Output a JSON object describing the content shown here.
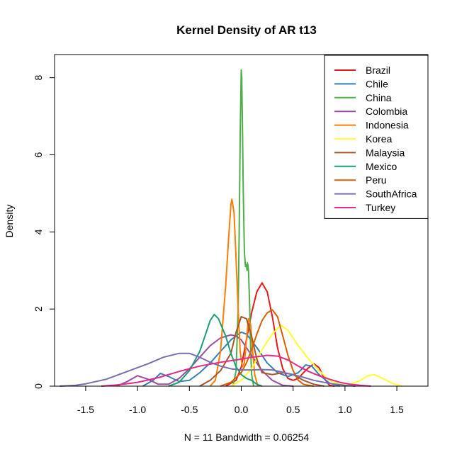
{
  "chart_data": {
    "type": "line",
    "title": "Kernel Density of AR t13",
    "xlabel": "N = 11   Bandwidth = 0.06254",
    "ylabel": "Density",
    "xlim": [
      -1.8,
      1.8
    ],
    "ylim": [
      0,
      8.6
    ],
    "x_ticks": [
      -1.5,
      -1.0,
      -0.5,
      0.0,
      0.5,
      1.0,
      1.5
    ],
    "x_tick_labels": [
      "-1.5",
      "-1.0",
      "-0.5",
      "0.0",
      "0.5",
      "1.0",
      "1.5"
    ],
    "y_ticks": [
      0,
      2,
      4,
      6,
      8
    ],
    "y_tick_labels": [
      "0",
      "2",
      "4",
      "6",
      "8"
    ],
    "legend_position": "top-right",
    "grid": false,
    "baseline_color": "#bebebe",
    "series": [
      {
        "name": "Brazil",
        "color": "#E41A1C",
        "points": [
          [
            -0.15,
            0
          ],
          [
            -0.05,
            0.15
          ],
          [
            0.0,
            0.5
          ],
          [
            0.05,
            1.2
          ],
          [
            0.1,
            1.9
          ],
          [
            0.15,
            2.45
          ],
          [
            0.2,
            2.68
          ],
          [
            0.25,
            2.45
          ],
          [
            0.3,
            1.8
          ],
          [
            0.35,
            1.0
          ],
          [
            0.4,
            0.45
          ],
          [
            0.45,
            0.2
          ],
          [
            0.5,
            0.15
          ],
          [
            0.55,
            0.2
          ],
          [
            0.6,
            0.35
          ],
          [
            0.65,
            0.48
          ],
          [
            0.7,
            0.58
          ],
          [
            0.75,
            0.48
          ],
          [
            0.8,
            0.2
          ],
          [
            0.85,
            0.02
          ],
          [
            0.9,
            0
          ]
        ]
      },
      {
        "name": "Chile",
        "color": "#377EB8",
        "points": [
          [
            -0.95,
            0
          ],
          [
            -0.85,
            0.15
          ],
          [
            -0.78,
            0.33
          ],
          [
            -0.7,
            0.25
          ],
          [
            -0.6,
            0.12
          ],
          [
            -0.5,
            0.15
          ],
          [
            -0.4,
            0.35
          ],
          [
            -0.3,
            0.6
          ],
          [
            -0.2,
            0.9
          ],
          [
            -0.1,
            1.2
          ],
          [
            0.0,
            1.4
          ],
          [
            0.05,
            1.35
          ],
          [
            0.15,
            1.0
          ],
          [
            0.25,
            0.6
          ],
          [
            0.35,
            0.35
          ],
          [
            0.45,
            0.25
          ],
          [
            0.55,
            0.35
          ],
          [
            0.62,
            0.55
          ],
          [
            0.68,
            0.52
          ],
          [
            0.75,
            0.3
          ],
          [
            0.85,
            0.08
          ],
          [
            0.95,
            0
          ]
        ]
      },
      {
        "name": "China",
        "color": "#4DAF4A",
        "points": [
          [
            -0.08,
            0
          ],
          [
            -0.05,
            0.4
          ],
          [
            -0.03,
            2.0
          ],
          [
            -0.02,
            4.0
          ],
          [
            -0.01,
            6.5
          ],
          [
            0.0,
            8.2
          ],
          [
            0.005,
            8.0
          ],
          [
            0.01,
            7.0
          ],
          [
            0.02,
            5.0
          ],
          [
            0.03,
            3.5
          ],
          [
            0.04,
            3.1
          ],
          [
            0.05,
            3.15
          ],
          [
            0.055,
            3.0
          ],
          [
            0.06,
            3.2
          ],
          [
            0.07,
            3.0
          ],
          [
            0.08,
            2.2
          ],
          [
            0.09,
            1.0
          ],
          [
            0.1,
            0.3
          ],
          [
            0.12,
            0
          ]
        ]
      },
      {
        "name": "Colombia",
        "color": "#984EA3",
        "points": [
          [
            -1.2,
            0
          ],
          [
            -1.1,
            0.12
          ],
          [
            -1.0,
            0.27
          ],
          [
            -0.9,
            0.18
          ],
          [
            -0.8,
            0.05
          ],
          [
            -0.7,
            0.05
          ],
          [
            -0.6,
            0.2
          ],
          [
            -0.5,
            0.45
          ],
          [
            -0.4,
            0.75
          ],
          [
            -0.3,
            1.05
          ],
          [
            -0.2,
            1.25
          ],
          [
            -0.1,
            1.33
          ],
          [
            -0.05,
            1.3
          ],
          [
            0.0,
            1.2
          ],
          [
            0.1,
            0.8
          ],
          [
            0.2,
            0.4
          ],
          [
            0.3,
            0.15
          ],
          [
            0.4,
            0.02
          ],
          [
            0.5,
            0
          ]
        ]
      },
      {
        "name": "Indonesia",
        "color": "#FF7F00",
        "points": [
          [
            -0.3,
            0
          ],
          [
            -0.25,
            0.15
          ],
          [
            -0.2,
            0.9
          ],
          [
            -0.15,
            2.6
          ],
          [
            -0.12,
            3.9
          ],
          [
            -0.1,
            4.7
          ],
          [
            -0.09,
            4.85
          ],
          [
            -0.07,
            4.5
          ],
          [
            -0.05,
            3.3
          ],
          [
            -0.03,
            2.0
          ],
          [
            -0.01,
            0.9
          ],
          [
            0.01,
            0.5
          ],
          [
            0.03,
            0.6
          ],
          [
            0.05,
            1.2
          ],
          [
            0.07,
            1.75
          ],
          [
            0.09,
            1.6
          ],
          [
            0.11,
            0.9
          ],
          [
            0.13,
            0.3
          ],
          [
            0.16,
            0
          ]
        ]
      },
      {
        "name": "Korea",
        "color": "#FFFF33",
        "points": [
          [
            -0.1,
            0
          ],
          [
            0.0,
            0.15
          ],
          [
            0.1,
            0.45
          ],
          [
            0.2,
            0.95
          ],
          [
            0.3,
            1.35
          ],
          [
            0.38,
            1.58
          ],
          [
            0.45,
            1.45
          ],
          [
            0.55,
            1.05
          ],
          [
            0.65,
            0.7
          ],
          [
            0.75,
            0.4
          ],
          [
            0.85,
            0.15
          ],
          [
            0.95,
            0.05
          ],
          [
            1.05,
            0.05
          ],
          [
            1.15,
            0.15
          ],
          [
            1.22,
            0.27
          ],
          [
            1.28,
            0.3
          ],
          [
            1.35,
            0.22
          ],
          [
            1.45,
            0.08
          ],
          [
            1.55,
            0
          ]
        ]
      },
      {
        "name": "Malaysia",
        "color": "#A65628",
        "points": [
          [
            -0.4,
            0
          ],
          [
            -0.3,
            0.15
          ],
          [
            -0.2,
            0.4
          ],
          [
            -0.1,
            0.85
          ],
          [
            -0.05,
            1.4
          ],
          [
            0.0,
            1.8
          ],
          [
            0.05,
            1.75
          ],
          [
            0.1,
            1.3
          ],
          [
            0.15,
            0.7
          ],
          [
            0.2,
            0.35
          ],
          [
            0.3,
            0.3
          ],
          [
            0.4,
            0.35
          ],
          [
            0.5,
            0.3
          ],
          [
            0.6,
            0.15
          ],
          [
            0.7,
            0.05
          ],
          [
            0.8,
            0
          ]
        ]
      },
      {
        "name": "Mexico",
        "color": "#1B9E77",
        "points": [
          [
            -0.7,
            0
          ],
          [
            -0.6,
            0.1
          ],
          [
            -0.5,
            0.4
          ],
          [
            -0.4,
            0.9
          ],
          [
            -0.35,
            1.3
          ],
          [
            -0.3,
            1.7
          ],
          [
            -0.26,
            1.86
          ],
          [
            -0.22,
            1.75
          ],
          [
            -0.15,
            1.3
          ],
          [
            -0.1,
            0.85
          ],
          [
            -0.05,
            0.5
          ],
          [
            0.0,
            0.3
          ],
          [
            0.05,
            0.2
          ],
          [
            0.1,
            0.15
          ],
          [
            0.15,
            0.05
          ],
          [
            0.2,
            0
          ]
        ]
      },
      {
        "name": "Peru",
        "color": "#D95F02",
        "points": [
          [
            -0.2,
            0
          ],
          [
            -0.1,
            0.1
          ],
          [
            0.0,
            0.35
          ],
          [
            0.05,
            0.6
          ],
          [
            0.1,
            0.95
          ],
          [
            0.15,
            1.35
          ],
          [
            0.2,
            1.7
          ],
          [
            0.25,
            1.9
          ],
          [
            0.3,
            1.98
          ],
          [
            0.35,
            1.8
          ],
          [
            0.4,
            1.3
          ],
          [
            0.45,
            0.8
          ],
          [
            0.5,
            0.4
          ],
          [
            0.55,
            0.15
          ],
          [
            0.6,
            0.05
          ],
          [
            0.65,
            0.02
          ],
          [
            0.7,
            0
          ]
        ]
      },
      {
        "name": "SouthAfrica",
        "color": "#7570B3",
        "points": [
          [
            -1.75,
            0
          ],
          [
            -1.6,
            0.02
          ],
          [
            -1.5,
            0.06
          ],
          [
            -1.3,
            0.18
          ],
          [
            -1.1,
            0.38
          ],
          [
            -0.9,
            0.58
          ],
          [
            -0.75,
            0.75
          ],
          [
            -0.6,
            0.85
          ],
          [
            -0.5,
            0.85
          ],
          [
            -0.4,
            0.75
          ],
          [
            -0.3,
            0.62
          ],
          [
            -0.2,
            0.52
          ],
          [
            -0.1,
            0.45
          ],
          [
            0.0,
            0.42
          ],
          [
            0.1,
            0.42
          ],
          [
            0.2,
            0.43
          ],
          [
            0.3,
            0.42
          ],
          [
            0.4,
            0.36
          ],
          [
            0.5,
            0.3
          ],
          [
            0.6,
            0.23
          ],
          [
            0.7,
            0.15
          ],
          [
            0.85,
            0.07
          ],
          [
            1.0,
            0.02
          ],
          [
            1.1,
            0
          ]
        ]
      },
      {
        "name": "Turkey",
        "color": "#E7298A",
        "points": [
          [
            -1.35,
            0
          ],
          [
            -1.2,
            0.03
          ],
          [
            -1.0,
            0.1
          ],
          [
            -0.8,
            0.22
          ],
          [
            -0.6,
            0.38
          ],
          [
            -0.4,
            0.52
          ],
          [
            -0.2,
            0.62
          ],
          [
            0.0,
            0.7
          ],
          [
            0.1,
            0.75
          ],
          [
            0.2,
            0.78
          ],
          [
            0.25,
            0.8
          ],
          [
            0.35,
            0.78
          ],
          [
            0.45,
            0.68
          ],
          [
            0.55,
            0.52
          ],
          [
            0.65,
            0.38
          ],
          [
            0.75,
            0.27
          ],
          [
            0.85,
            0.18
          ],
          [
            0.95,
            0.1
          ],
          [
            1.05,
            0.05
          ],
          [
            1.15,
            0.02
          ],
          [
            1.25,
            0
          ]
        ]
      }
    ]
  }
}
